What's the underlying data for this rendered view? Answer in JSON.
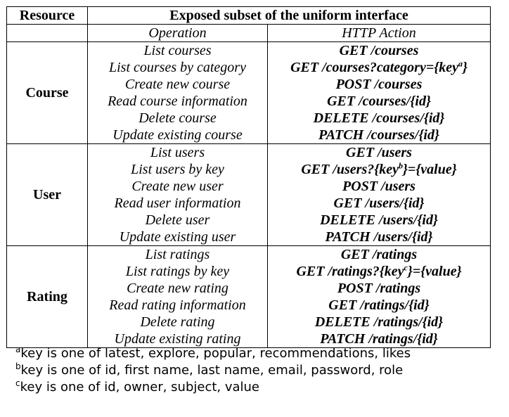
{
  "header": {
    "resource": "Resource",
    "subset_title": "Exposed subset of the uniform interface",
    "operation": "Operation",
    "http_action": "HTTP Action"
  },
  "groups": [
    {
      "resource": "Course",
      "rows": [
        {
          "operation": "List courses",
          "action": "GET /courses"
        },
        {
          "operation": "List courses by category",
          "action_prefix": "GET /courses?category={key",
          "action_sup": "a",
          "action_suffix": "}"
        },
        {
          "operation": "Create new course",
          "action": "POST /courses"
        },
        {
          "operation": "Read course information",
          "action": "GET /courses/{id}"
        },
        {
          "operation": "Delete course",
          "action": "DELETE /courses/{id}"
        },
        {
          "operation": "Update existing course",
          "action": "PATCH /courses/{id}"
        }
      ]
    },
    {
      "resource": "User",
      "rows": [
        {
          "operation": "List users",
          "action": "GET /users"
        },
        {
          "operation": "List users by key",
          "action_prefix": "GET /users?{key",
          "action_sup": "b",
          "action_suffix": "}={value}"
        },
        {
          "operation": "Create new user",
          "action": "POST /users"
        },
        {
          "operation": "Read user information",
          "action": "GET /users/{id}"
        },
        {
          "operation": "Delete user",
          "action": "DELETE /users/{id}"
        },
        {
          "operation": "Update existing user",
          "action": "PATCH /users/{id}"
        }
      ]
    },
    {
      "resource": "Rating",
      "rows": [
        {
          "operation": "List ratings",
          "action": "GET /ratings"
        },
        {
          "operation": "List ratings by key",
          "action_prefix": "GET /ratings?{key",
          "action_sup": "c",
          "action_suffix": "}={value}"
        },
        {
          "operation": "Create new rating",
          "action": "POST /ratings"
        },
        {
          "operation": "Read rating information",
          "action": "GET /ratings/{id}"
        },
        {
          "operation": "Delete rating",
          "action": "DELETE /ratings/{id}"
        },
        {
          "operation": "Update existing rating",
          "action": "PATCH /ratings/{id}"
        }
      ]
    }
  ],
  "footnotes": [
    {
      "mark": "a",
      "text": "key is one of latest, explore, popular, recommendations, likes"
    },
    {
      "mark": "b",
      "text": "key is one of id, first name, last name, email, password, role"
    },
    {
      "mark": "c",
      "text": "key is one of id, owner, subject, value"
    }
  ]
}
